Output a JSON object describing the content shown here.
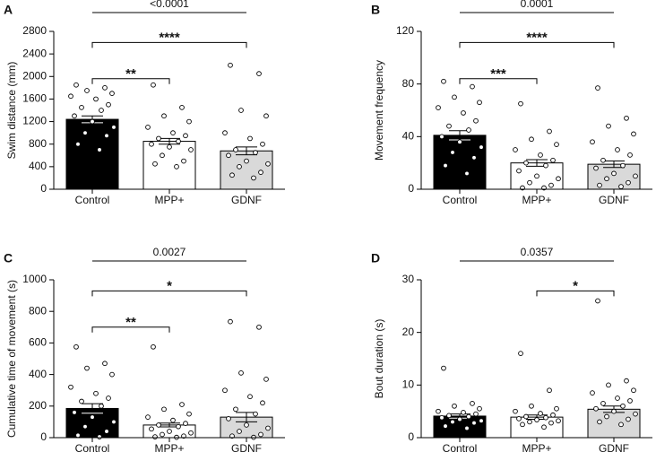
{
  "chart_data": [
    {
      "type": "bar",
      "panel": "A",
      "ylabel": "Swim distance (mm)",
      "categories": [
        "Control",
        "MPP+",
        "GDNF"
      ],
      "colors": [
        "#000000",
        "#ffffff",
        "#d9d9d9"
      ],
      "values": [
        1240,
        850,
        680
      ],
      "errors": [
        60,
        50,
        70
      ],
      "points": [
        [
          1850,
          1800,
          1750,
          1700,
          1650,
          1600,
          1500,
          1450,
          1400,
          1300,
          1200,
          1100,
          1000,
          950,
          800,
          700
        ],
        [
          1850,
          1450,
          1300,
          1200,
          1100,
          1000,
          950,
          900,
          850,
          800,
          750,
          700,
          600,
          500,
          450,
          400
        ],
        [
          2200,
          2050,
          1400,
          1300,
          1000,
          900,
          800,
          700,
          650,
          600,
          500,
          450,
          400,
          300,
          250,
          200
        ]
      ],
      "ylim": [
        0,
        2800
      ],
      "yticks": [
        0,
        400,
        800,
        1200,
        1600,
        2000,
        2400,
        2800
      ],
      "brackets": [
        {
          "between": [
            "Control",
            "MPP+"
          ],
          "label": "**"
        },
        {
          "between": [
            "Control",
            "GDNF"
          ],
          "label": "****"
        },
        {
          "between": [
            "Control",
            "GDNF"
          ],
          "label": "<0.0001"
        }
      ]
    },
    {
      "type": "bar",
      "panel": "B",
      "ylabel": "Movement frequency",
      "categories": [
        "Control",
        "MPP+",
        "GDNF"
      ],
      "colors": [
        "#000000",
        "#ffffff",
        "#d9d9d9"
      ],
      "values": [
        41,
        20,
        19
      ],
      "errors": [
        3.5,
        2.5,
        2.5
      ],
      "points": [
        [
          82,
          78,
          70,
          66,
          62,
          58,
          52,
          48,
          45,
          40,
          36,
          32,
          28,
          24,
          18,
          12
        ],
        [
          65,
          44,
          38,
          34,
          30,
          26,
          22,
          20,
          18,
          14,
          10,
          8,
          5,
          3,
          1,
          1
        ],
        [
          77,
          54,
          48,
          42,
          36,
          30,
          26,
          22,
          18,
          16,
          12,
          10,
          8,
          5,
          3,
          2
        ]
      ],
      "ylim": [
        0,
        120
      ],
      "yticks": [
        0,
        40,
        80,
        120
      ],
      "brackets": [
        {
          "between": [
            "Control",
            "MPP+"
          ],
          "label": "***"
        },
        {
          "between": [
            "Control",
            "GDNF"
          ],
          "label": "****"
        },
        {
          "between": [
            "Control",
            "GDNF"
          ],
          "label": "0.0001"
        }
      ]
    },
    {
      "type": "bar",
      "panel": "C",
      "ylabel": "Cumulative time of movement (s)",
      "categories": [
        "Control",
        "MPP+",
        "GDNF"
      ],
      "colors": [
        "#000000",
        "#ffffff",
        "#d9d9d9"
      ],
      "values": [
        185,
        80,
        130
      ],
      "errors": [
        30,
        12,
        30
      ],
      "points": [
        [
          575,
          470,
          440,
          400,
          320,
          280,
          250,
          230,
          200,
          160,
          130,
          100,
          70,
          40,
          15,
          5
        ],
        [
          575,
          210,
          180,
          150,
          130,
          110,
          90,
          80,
          70,
          55,
          40,
          30,
          20,
          10,
          5,
          2
        ],
        [
          735,
          700,
          410,
          370,
          300,
          260,
          220,
          180,
          150,
          120,
          80,
          60,
          40,
          20,
          10,
          2
        ]
      ],
      "ylim": [
        0,
        1000
      ],
      "yticks": [
        0,
        200,
        400,
        600,
        800,
        1000
      ],
      "brackets": [
        {
          "between": [
            "Control",
            "MPP+"
          ],
          "label": "**"
        },
        {
          "between": [
            "Control",
            "GDNF"
          ],
          "label": "*"
        },
        {
          "between": [
            "Control",
            "GDNF"
          ],
          "label": "0.0027"
        }
      ]
    },
    {
      "type": "bar",
      "panel": "D",
      "ylabel": "Bout duration (s)",
      "categories": [
        "Control",
        "MPP+",
        "GDNF"
      ],
      "colors": [
        "#000000",
        "#ffffff",
        "#d9d9d9"
      ],
      "values": [
        4.1,
        3.9,
        5.4
      ],
      "errors": [
        0.4,
        0.4,
        0.6
      ],
      "points": [
        [
          13.2,
          6.5,
          6,
          5.5,
          5,
          4.8,
          4.5,
          4.2,
          4,
          3.8,
          3.5,
          3.2,
          3,
          2.8,
          2.2,
          1.8
        ],
        [
          16,
          9,
          6,
          5.5,
          5,
          4.6,
          4.3,
          4,
          3.8,
          3.6,
          3.4,
          3.2,
          3,
          2.8,
          2.5,
          2
        ],
        [
          26,
          10.8,
          10,
          9,
          8.5,
          7.5,
          7,
          6.5,
          6,
          5.5,
          5,
          4.5,
          4,
          3.5,
          3,
          2.5
        ]
      ],
      "ylim": [
        0,
        30
      ],
      "yticks": [
        0,
        10,
        20,
        30
      ],
      "brackets": [
        {
          "between": [
            "MPP+",
            "GDNF"
          ],
          "label": "*"
        },
        {
          "between": [
            "Control",
            "GDNF"
          ],
          "label": "0.0357"
        }
      ]
    }
  ]
}
